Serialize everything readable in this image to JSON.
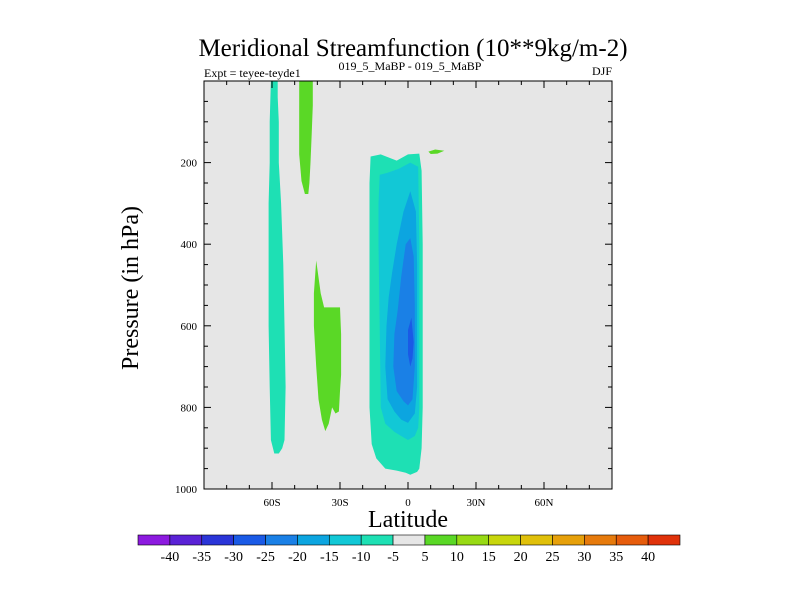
{
  "chart_data": {
    "type": "contour",
    "title": "Meridional Streamfunction (10**9kg/m-2)",
    "subtitle_left": "Expt = teyee-teyde1",
    "subtitle_center": "019_5_MaBP - 019_5_MaBP",
    "subtitle_right": "DJF",
    "xlabel": "Latitude",
    "ylabel": "Pressure (in hPa)",
    "xlim": [
      -90,
      90
    ],
    "ylim": [
      1000,
      0
    ],
    "x_ticks": [
      {
        "value": -60,
        "label": "60S"
      },
      {
        "value": -30,
        "label": "30S"
      },
      {
        "value": 0,
        "label": "0"
      },
      {
        "value": 30,
        "label": "30N"
      },
      {
        "value": 60,
        "label": "60N"
      }
    ],
    "y_ticks": [
      {
        "value": 200,
        "label": "200"
      },
      {
        "value": 400,
        "label": "400"
      },
      {
        "value": 600,
        "label": "600"
      },
      {
        "value": 800,
        "label": "800"
      },
      {
        "value": 1000,
        "label": "1000"
      }
    ],
    "background_color": "#e6e6e6",
    "colorbar": {
      "labels": [
        "-40",
        "-35",
        "-30",
        "-25",
        "-20",
        "-15",
        "-10",
        "-5",
        "5",
        "10",
        "15",
        "20",
        "25",
        "30",
        "35",
        "40"
      ],
      "colors": [
        "#8c1adf",
        "#5a22d6",
        "#2a35d8",
        "#1a5ae6",
        "#1a80e6",
        "#0ca5e0",
        "#12c8d6",
        "#1ee0b4",
        "#e6e6e6",
        "#5ad826",
        "#98da14",
        "#c8d60c",
        "#e0c00a",
        "#e6a00a",
        "#e67a0c",
        "#e65c0c",
        "#e0320a"
      ]
    },
    "regions": [
      {
        "name": "sh-high-lat-cell",
        "level": "-5",
        "color": "#1ee0b4",
        "points": [
          [
            -60.5,
            0
          ],
          [
            -57.5,
            0
          ],
          [
            -57.5,
            40
          ],
          [
            -57,
            100
          ],
          [
            -57,
            200
          ],
          [
            -56,
            300
          ],
          [
            -55,
            450
          ],
          [
            -54.5,
            600
          ],
          [
            -54,
            750
          ],
          [
            -54.5,
            880
          ],
          [
            -55.5,
            900
          ],
          [
            -57,
            913
          ],
          [
            -59,
            913
          ],
          [
            -60.5,
            880
          ],
          [
            -61,
            750
          ],
          [
            -61.5,
            600
          ],
          [
            -61.5,
            450
          ],
          [
            -61.5,
            300
          ],
          [
            -61,
            200
          ],
          [
            -61,
            100
          ]
        ]
      },
      {
        "name": "sh-upper-positive",
        "level": "5",
        "color": "#5ad826",
        "points": [
          [
            -48,
            0
          ],
          [
            -42,
            0
          ],
          [
            -42,
            60
          ],
          [
            -42.5,
            130
          ],
          [
            -43,
            200
          ],
          [
            -43.5,
            250
          ],
          [
            -44,
            277
          ],
          [
            -45.5,
            277
          ],
          [
            -47,
            245
          ],
          [
            -48,
            180
          ],
          [
            -48,
            80
          ]
        ]
      },
      {
        "name": "sh-mid-positive",
        "level": "5",
        "color": "#5ad826",
        "points": [
          [
            -40.5,
            440
          ],
          [
            -38.5,
            520
          ],
          [
            -37,
            555
          ],
          [
            -30,
            555
          ],
          [
            -29.5,
            620
          ],
          [
            -29.5,
            720
          ],
          [
            -30,
            760
          ],
          [
            -30.5,
            810
          ],
          [
            -32,
            815
          ],
          [
            -33.5,
            800
          ],
          [
            -35,
            840
          ],
          [
            -36.5,
            858
          ],
          [
            -38,
            830
          ],
          [
            -39.5,
            780
          ],
          [
            -40.5,
            700
          ],
          [
            -41.5,
            600
          ],
          [
            -41.5,
            520
          ]
        ]
      },
      {
        "name": "hadley-minus5",
        "level": "-5",
        "color": "#1ee0b4",
        "points": [
          [
            -16.5,
            185
          ],
          [
            -12,
            180
          ],
          [
            -5,
            195
          ],
          [
            0,
            180
          ],
          [
            5,
            178
          ],
          [
            6,
            220
          ],
          [
            6.5,
            400
          ],
          [
            6.5,
            600
          ],
          [
            6.5,
            800
          ],
          [
            6,
            900
          ],
          [
            5,
            950
          ],
          [
            4,
            958
          ],
          [
            1,
            965
          ],
          [
            -1,
            960
          ],
          [
            -5,
            955
          ],
          [
            -10,
            950
          ],
          [
            -14,
            925
          ],
          [
            -16,
            890
          ],
          [
            -17,
            800
          ],
          [
            -17,
            600
          ],
          [
            -17,
            400
          ],
          [
            -17,
            250
          ]
        ]
      },
      {
        "name": "hadley-minus10",
        "level": "-10",
        "color": "#12c8d6",
        "points": [
          [
            -12.5,
            230
          ],
          [
            -9,
            225
          ],
          [
            -4,
            215
          ],
          [
            1,
            200
          ],
          [
            4.5,
            210
          ],
          [
            5,
            400
          ],
          [
            5,
            600
          ],
          [
            5,
            800
          ],
          [
            4.5,
            850
          ],
          [
            3,
            870
          ],
          [
            0,
            880
          ],
          [
            -3,
            870
          ],
          [
            -6,
            860
          ],
          [
            -10,
            840
          ],
          [
            -12,
            800
          ],
          [
            -12.5,
            600
          ],
          [
            -13,
            400
          ],
          [
            -13,
            300
          ]
        ]
      },
      {
        "name": "hadley-minus15",
        "level": "-15",
        "color": "#0ca5e0",
        "points": [
          [
            -7,
            470
          ],
          [
            -5,
            400
          ],
          [
            -2,
            320
          ],
          [
            1,
            270
          ],
          [
            3.5,
            320
          ],
          [
            4,
            450
          ],
          [
            4,
            600
          ],
          [
            4,
            750
          ],
          [
            3,
            815
          ],
          [
            0,
            838
          ],
          [
            -3,
            830
          ],
          [
            -6,
            810
          ],
          [
            -9,
            780
          ],
          [
            -10,
            700
          ],
          [
            -9.5,
            600
          ],
          [
            -8.5,
            530
          ]
        ]
      },
      {
        "name": "hadley-minus20",
        "level": "-20",
        "color": "#1a80e6",
        "points": [
          [
            -4.5,
            560
          ],
          [
            -3,
            480
          ],
          [
            -1,
            400
          ],
          [
            1,
            385
          ],
          [
            2.5,
            430
          ],
          [
            3,
            550
          ],
          [
            3,
            700
          ],
          [
            2,
            780
          ],
          [
            0,
            795
          ],
          [
            -2,
            785
          ],
          [
            -5,
            760
          ],
          [
            -6.5,
            700
          ],
          [
            -6,
            620
          ]
        ]
      },
      {
        "name": "hadley-minus25",
        "level": "-25",
        "color": "#1a5ae6",
        "points": [
          [
            0,
            610
          ],
          [
            1.5,
            580
          ],
          [
            2.5,
            640
          ],
          [
            2,
            680
          ],
          [
            1,
            700
          ],
          [
            0,
            670
          ]
        ]
      },
      {
        "name": "nh-upper-positive",
        "level": "5",
        "color": "#5ad826",
        "points": [
          [
            9,
            173
          ],
          [
            12,
            168
          ],
          [
            16,
            171
          ],
          [
            13,
            178
          ],
          [
            10,
            179
          ]
        ]
      }
    ]
  }
}
